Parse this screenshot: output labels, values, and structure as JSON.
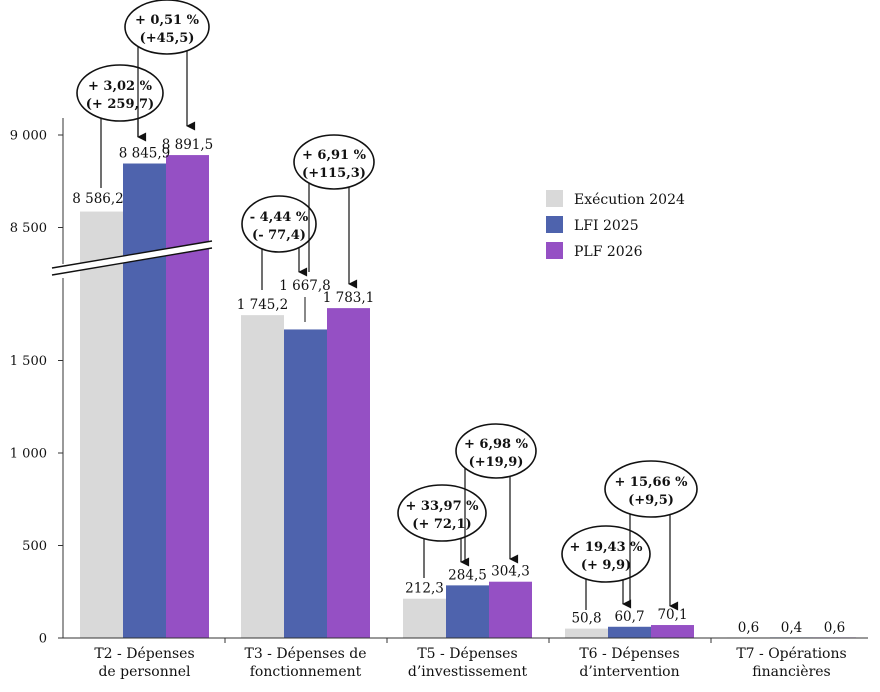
{
  "chart_data": {
    "type": "bar",
    "categories": [
      [
        "T2 - Dépenses",
        "de personnel"
      ],
      [
        "T3 - Dépenses de",
        "fonctionnement"
      ],
      [
        "T5 - Dépenses",
        "d’investissement"
      ],
      [
        "T6 - Dépenses",
        "d’intervention"
      ],
      [
        "T7 - Opérations",
        "financières"
      ]
    ],
    "series": [
      {
        "name": "Exécution 2024",
        "color": "#d9d9d9",
        "values": [
          8586.2,
          1745.2,
          212.3,
          50.8,
          0.6
        ],
        "labels": [
          "8 586,2",
          "1 745,2",
          "212,3",
          "50,8",
          "0,6"
        ]
      },
      {
        "name": "LFI 2025",
        "color": "#4e63ad",
        "values": [
          8845.9,
          1667.8,
          284.5,
          60.7,
          0.4
        ],
        "labels": [
          "8 845,9",
          "1 667,8",
          "284,5",
          "60,7",
          "0,4"
        ]
      },
      {
        "name": "PLF 2026",
        "color": "#9550c4",
        "values": [
          8891.5,
          1783.1,
          304.3,
          70.1,
          0.6
        ],
        "labels": [
          "8 891,5",
          "1 783,1",
          "304,3",
          "70,1",
          "0,6"
        ]
      }
    ],
    "y_axis": {
      "broken": true,
      "lower_range": [
        0,
        1600
      ],
      "upper_range": [
        8350,
        9000
      ],
      "ticks": [
        {
          "value": 0,
          "label": "0"
        },
        {
          "value": 500,
          "label": "500"
        },
        {
          "value": 1000,
          "label": "1 000"
        },
        {
          "value": 1500,
          "label": "1 500"
        },
        {
          "value": 8500,
          "label": "8 500"
        },
        {
          "value": 9000,
          "label": "9 000"
        }
      ]
    },
    "legend_position": "right",
    "grid": false,
    "annotations": [
      {
        "category": 0,
        "from": 0,
        "to": 1,
        "lines": [
          "+ 3,02 %",
          "(+ 259,7)"
        ]
      },
      {
        "category": 0,
        "from": 1,
        "to": 2,
        "lines": [
          "+ 0,51 %",
          "(+45,5)"
        ]
      },
      {
        "category": 1,
        "from": 0,
        "to": 1,
        "lines": [
          "- 4,44 %",
          "(- 77,4)"
        ]
      },
      {
        "category": 1,
        "from": 1,
        "to": 2,
        "lines": [
          "+ 6,91 %",
          "(+115,3)"
        ]
      },
      {
        "category": 2,
        "from": 0,
        "to": 1,
        "lines": [
          "+ 33,97 %",
          "(+ 72,1)"
        ]
      },
      {
        "category": 2,
        "from": 1,
        "to": 2,
        "lines": [
          "+ 6,98 %",
          "(+19,9)"
        ]
      },
      {
        "category": 3,
        "from": 0,
        "to": 1,
        "lines": [
          "+ 19,43 %",
          "(+ 9,9)"
        ]
      },
      {
        "category": 3,
        "from": 1,
        "to": 2,
        "lines": [
          "+ 15,66 %",
          "(+9,5)"
        ]
      }
    ]
  }
}
